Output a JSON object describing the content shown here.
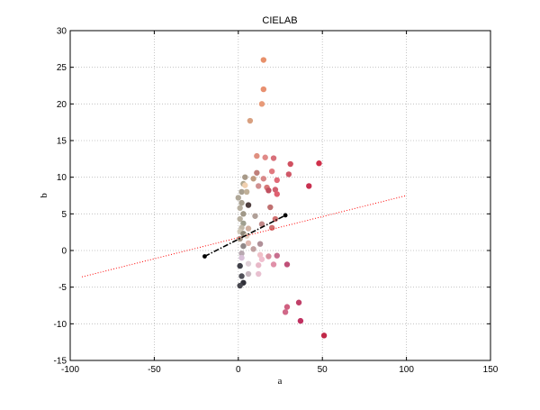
{
  "chart_data": {
    "type": "scatter",
    "title": "CIELAB",
    "xlabel": "a",
    "ylabel": "b",
    "xlim": [
      -100,
      150
    ],
    "ylim": [
      -15,
      30
    ],
    "xticks": [
      -100,
      -50,
      0,
      50,
      100,
      150
    ],
    "yticks": [
      -15,
      -10,
      -5,
      0,
      5,
      10,
      15,
      20,
      25,
      30
    ],
    "grid": true,
    "colors": {
      "fit_line": "#ff0000",
      "principal_axis": "#000000"
    },
    "series": [
      {
        "type": "scatter",
        "points": [
          {
            "x": 15,
            "y": 26,
            "color": "#e8906a"
          },
          {
            "x": 15,
            "y": 22,
            "color": "#e89070"
          },
          {
            "x": 14,
            "y": 20,
            "color": "#e89a78"
          },
          {
            "x": 7,
            "y": 17.7,
            "color": "#d8a080"
          },
          {
            "x": 11,
            "y": 12.9,
            "color": "#e09080"
          },
          {
            "x": 16,
            "y": 12.7,
            "color": "#e08a88"
          },
          {
            "x": 21,
            "y": 12.6,
            "color": "#d8707a"
          },
          {
            "x": 31,
            "y": 11.8,
            "color": "#d05060"
          },
          {
            "x": 48,
            "y": 11.9,
            "color": "#d0304a"
          },
          {
            "x": 11,
            "y": 10.6,
            "color": "#c0807a"
          },
          {
            "x": 20,
            "y": 10.8,
            "color": "#e07a80"
          },
          {
            "x": 30,
            "y": 10.4,
            "color": "#d05868"
          },
          {
            "x": 4,
            "y": 10.0,
            "color": "#a89a88"
          },
          {
            "x": 9,
            "y": 9.8,
            "color": "#c09c80"
          },
          {
            "x": 15,
            "y": 9.8,
            "color": "#d88888"
          },
          {
            "x": 23,
            "y": 9.6,
            "color": "#e06a78"
          },
          {
            "x": 3,
            "y": 9.1,
            "color": "#b0a890"
          },
          {
            "x": 4,
            "y": 8.9,
            "color": "#f0d0b0"
          },
          {
            "x": 12,
            "y": 8.8,
            "color": "#d09090"
          },
          {
            "x": 17,
            "y": 8.6,
            "color": "#d87878"
          },
          {
            "x": 22,
            "y": 8.3,
            "color": "#d06070"
          },
          {
            "x": 42,
            "y": 8.8,
            "color": "#c83050"
          },
          {
            "x": 2,
            "y": 8.0,
            "color": "#a8a090"
          },
          {
            "x": 5,
            "y": 8.0,
            "color": "#c0b098"
          },
          {
            "x": 18,
            "y": 8.2,
            "color": "#c05060"
          },
          {
            "x": 23,
            "y": 7.7,
            "color": "#e06070"
          },
          {
            "x": 0,
            "y": 7.2,
            "color": "#b0a898"
          },
          {
            "x": 6,
            "y": 6.2,
            "color": "#504040"
          },
          {
            "x": 2,
            "y": 6.5,
            "color": "#a8a090"
          },
          {
            "x": 1,
            "y": 5.8,
            "color": "#b8b0a0"
          },
          {
            "x": 19,
            "y": 5.9,
            "color": "#c07070"
          },
          {
            "x": 3,
            "y": 5.0,
            "color": "#a09888"
          },
          {
            "x": 10,
            "y": 4.7,
            "color": "#b0a098"
          },
          {
            "x": 1,
            "y": 4.3,
            "color": "#b8b0a0"
          },
          {
            "x": 22,
            "y": 4.3,
            "color": "#d07070"
          },
          {
            "x": 3,
            "y": 3.7,
            "color": "#a0a090"
          },
          {
            "x": 14,
            "y": 3.6,
            "color": "#c08888"
          },
          {
            "x": 2,
            "y": 3.1,
            "color": "#c0b8a8"
          },
          {
            "x": 6,
            "y": 3.0,
            "color": "#d0b0a0"
          },
          {
            "x": 20,
            "y": 3.1,
            "color": "#d07070"
          },
          {
            "x": 1,
            "y": 2.6,
            "color": "#d0c8b8"
          },
          {
            "x": 3,
            "y": 2.3,
            "color": "#908878"
          },
          {
            "x": 5,
            "y": 2.0,
            "color": "#e0d0c0"
          },
          {
            "x": 1,
            "y": 1.6,
            "color": "#a89888"
          },
          {
            "x": 6,
            "y": 1.0,
            "color": "#e0b8b0"
          },
          {
            "x": 13,
            "y": 0.9,
            "color": "#b09098"
          },
          {
            "x": 3,
            "y": 0.6,
            "color": "#908888"
          },
          {
            "x": 9,
            "y": 0.2,
            "color": "#c0a0a0"
          },
          {
            "x": 2,
            "y": -0.4,
            "color": "#b8a8b0"
          },
          {
            "x": 13,
            "y": -0.6,
            "color": "#f0c0c8"
          },
          {
            "x": 18,
            "y": -0.8,
            "color": "#d890a0"
          },
          {
            "x": 23,
            "y": -0.7,
            "color": "#c87090"
          },
          {
            "x": 2,
            "y": -1.0,
            "color": "#d8c0d8"
          },
          {
            "x": 14,
            "y": -1.2,
            "color": "#f0c0d0"
          },
          {
            "x": 1,
            "y": -2.1,
            "color": "#404048"
          },
          {
            "x": 6,
            "y": -1.8,
            "color": "#e0d0d8"
          },
          {
            "x": 12,
            "y": -2.0,
            "color": "#e8b8c8"
          },
          {
            "x": 21,
            "y": -1.9,
            "color": "#e090a8"
          },
          {
            "x": 29,
            "y": -1.9,
            "color": "#c05078"
          },
          {
            "x": 6,
            "y": -3.2,
            "color": "#c8b8c0"
          },
          {
            "x": 12,
            "y": -3.2,
            "color": "#e8c0d0"
          },
          {
            "x": 2,
            "y": -3.5,
            "color": "#505058"
          },
          {
            "x": 3,
            "y": -4.4,
            "color": "#303038"
          },
          {
            "x": 1,
            "y": -4.8,
            "color": "#484850"
          },
          {
            "x": 36,
            "y": -7.1,
            "color": "#c04068"
          },
          {
            "x": 29,
            "y": -7.7,
            "color": "#d06080"
          },
          {
            "x": 28,
            "y": -8.4,
            "color": "#d06888"
          },
          {
            "x": 37,
            "y": -9.6,
            "color": "#c03060"
          },
          {
            "x": 51,
            "y": -11.6,
            "color": "#c02848"
          }
        ]
      },
      {
        "type": "line",
        "style": "dotted",
        "color": "#ff0000",
        "x": [
          -93,
          100
        ],
        "y": [
          -3.6,
          7.5
        ]
      },
      {
        "type": "line",
        "style": "dashdot",
        "color": "#000000",
        "x": [
          -20,
          28
        ],
        "y": [
          -0.8,
          4.8
        ]
      }
    ]
  }
}
